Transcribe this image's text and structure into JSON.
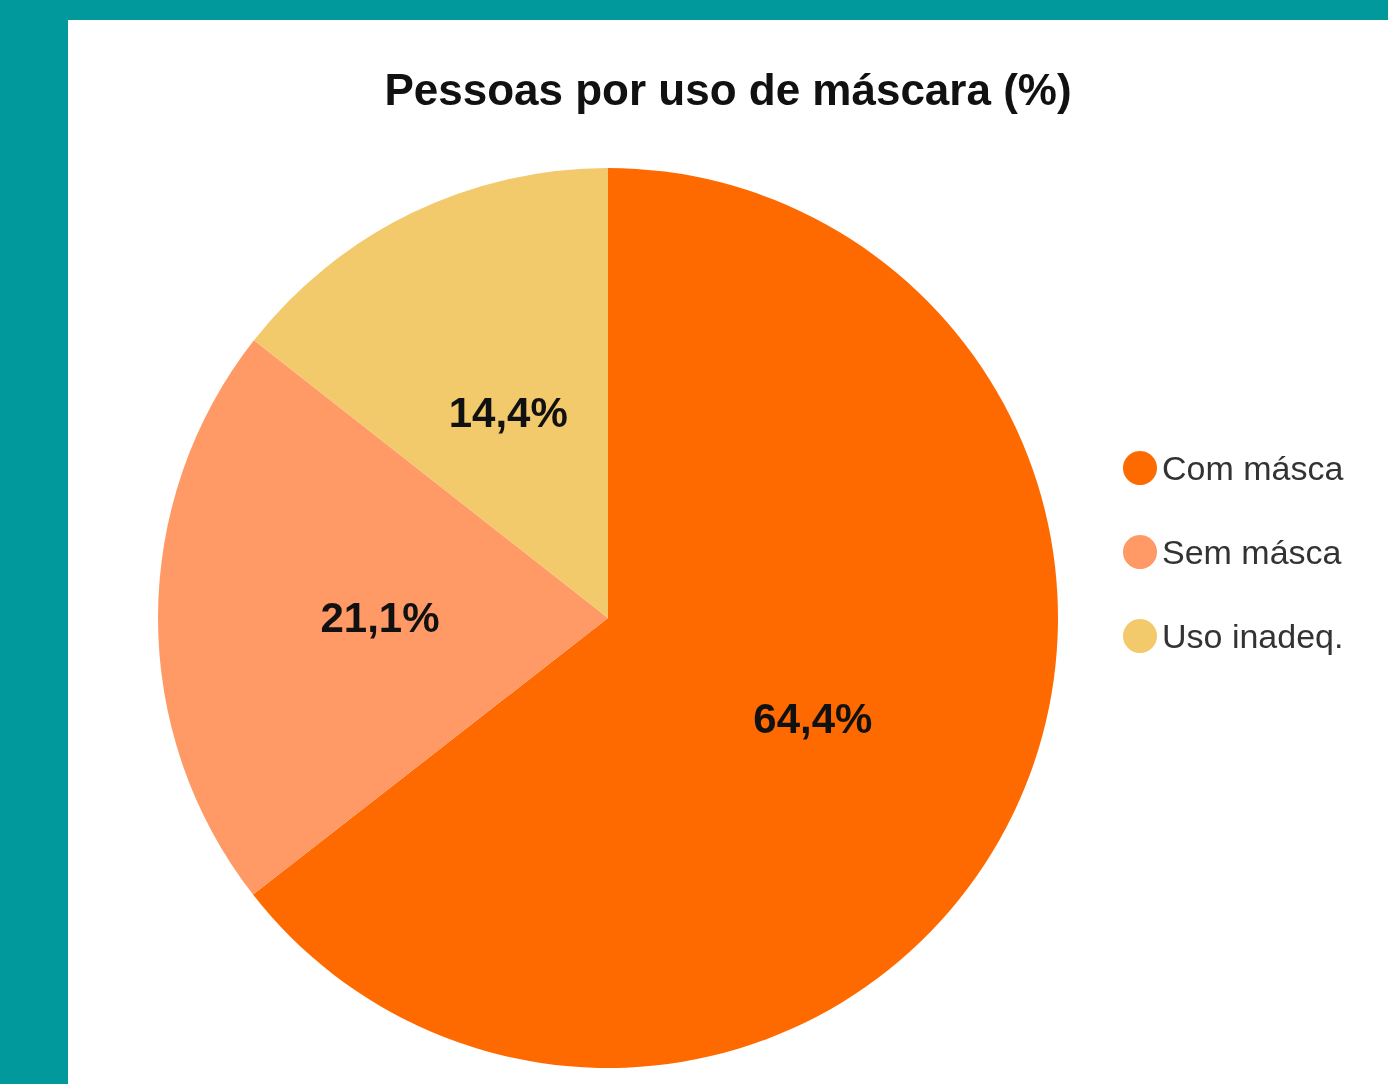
{
  "chart_data": {
    "type": "pie",
    "title": "Pessoas por uso de máscara (%)",
    "categories": [
      "Com másca",
      "Sem másca",
      "Uso inadeq."
    ],
    "values": [
      64.4,
      21.1,
      14.4
    ],
    "colors": [
      "#ff6a00",
      "#ff9966",
      "#f2c96b"
    ],
    "value_labels": [
      "64,4%",
      "21,1%",
      "14,4%"
    ],
    "legend": "right"
  }
}
